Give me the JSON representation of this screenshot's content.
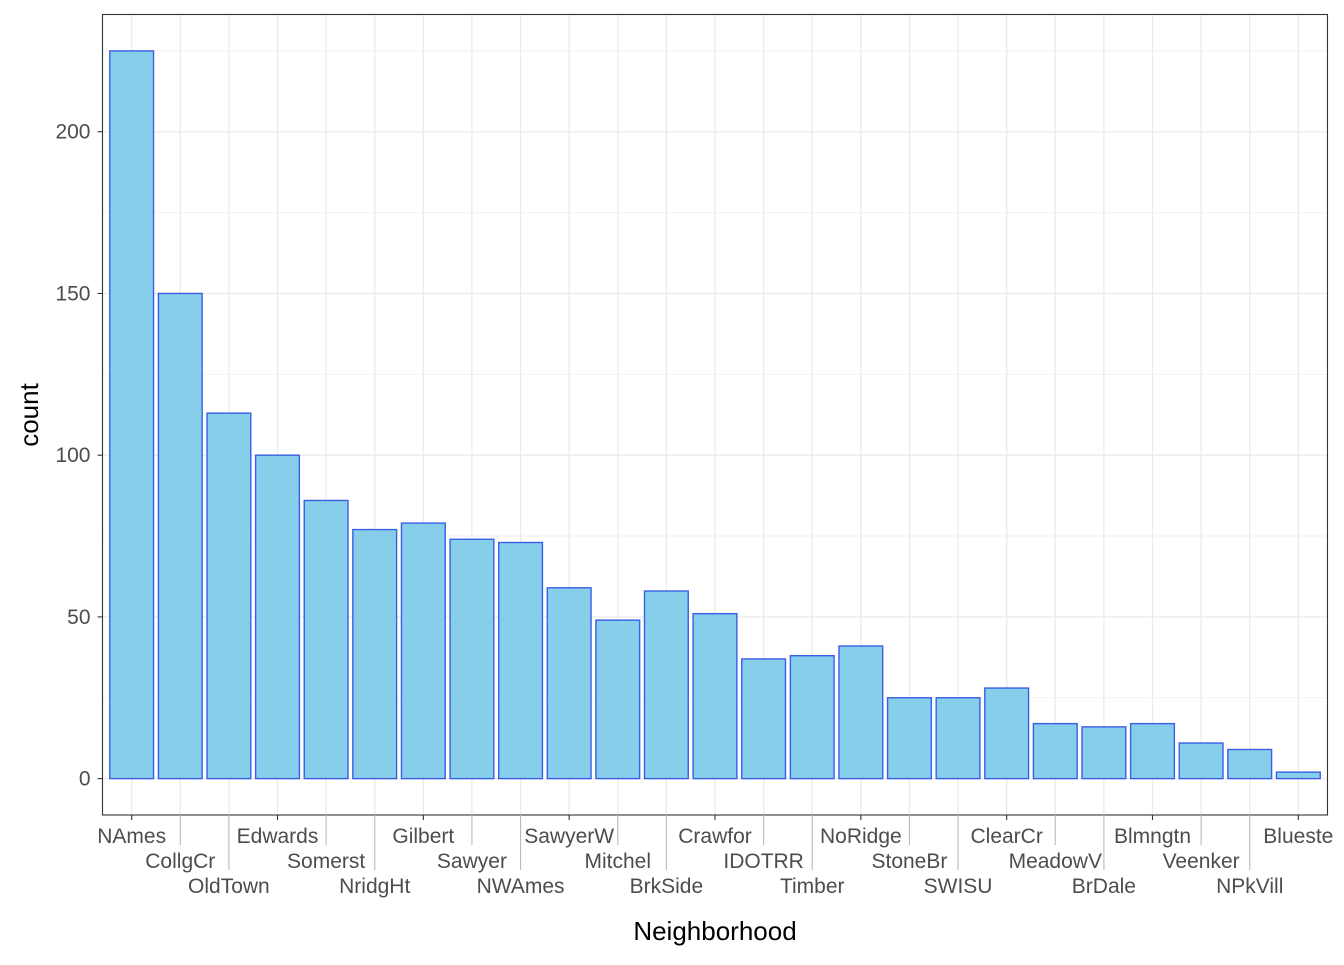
{
  "chart_data": {
    "type": "bar",
    "title": "",
    "xlabel": "Neighborhood",
    "ylabel": "count",
    "ylim": [
      -11.25,
      236.25
    ],
    "yticks": [
      0,
      50,
      100,
      150,
      200
    ],
    "grid": true,
    "categories": [
      "NAmes",
      "CollgCr",
      "OldTown",
      "Edwards",
      "Somerst",
      "NridgHt",
      "Gilbert",
      "Sawyer",
      "NWAmes",
      "SawyerW",
      "Mitchel",
      "BrkSide",
      "Crawfor",
      "IDOTRR",
      "Timber",
      "NoRidge",
      "StoneBr",
      "SWISU",
      "ClearCr",
      "MeadowV",
      "BrDale",
      "Blmngtn",
      "Veenker",
      "NPkVill",
      "Blueste"
    ],
    "values": [
      225,
      150,
      113,
      100,
      86,
      77,
      79,
      74,
      73,
      59,
      49,
      58,
      51,
      37,
      38,
      41,
      25,
      25,
      28,
      17,
      16,
      17,
      11,
      9,
      2
    ],
    "colors": {
      "fill": "#87CEEB",
      "stroke": "#3A5FE5"
    }
  }
}
